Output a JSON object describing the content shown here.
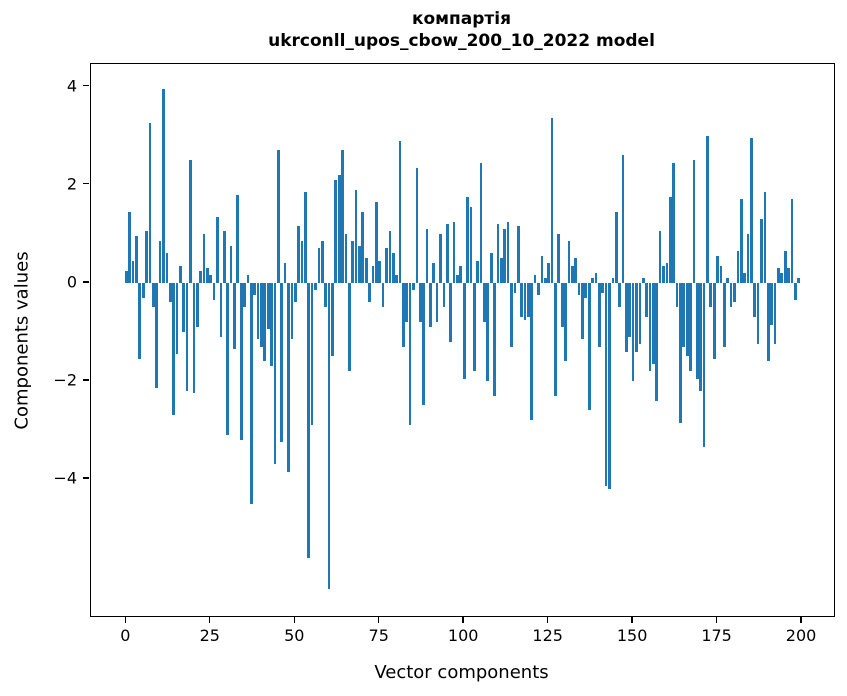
{
  "chart_data": {
    "type": "bar",
    "title_line1": "компартія",
    "title_line2": "ukrconll_upos_cbow_200_10_2022 model",
    "xlabel": "Vector components",
    "ylabel": "Components values",
    "x_ticks": [
      0,
      25,
      50,
      75,
      100,
      125,
      150,
      175,
      200
    ],
    "y_ticks": [
      4,
      2,
      0,
      -2,
      -4
    ],
    "xlim": [
      -10.45,
      209.45
    ],
    "ylim": [
      -6.79,
      4.46
    ],
    "grid": false,
    "legend": null,
    "bar_color": "#1f77b4",
    "n_components": 200,
    "values": [
      0.25,
      1.45,
      0.45,
      0.95,
      -1.55,
      -0.3,
      1.05,
      3.25,
      -0.5,
      -2.15,
      0.85,
      3.95,
      0.6,
      -0.4,
      -2.7,
      -1.45,
      0.35,
      -1.0,
      -2.2,
      2.5,
      -2.25,
      -0.9,
      0.25,
      1.0,
      0.3,
      0.15,
      -0.35,
      1.35,
      -1.1,
      1.05,
      -3.1,
      0.75,
      -1.35,
      1.8,
      -3.2,
      -0.5,
      0.15,
      -4.5,
      -0.25,
      -1.15,
      -1.3,
      -1.6,
      -0.95,
      -1.7,
      -3.7,
      2.7,
      -3.25,
      0.4,
      -3.85,
      -1.15,
      -0.4,
      1.15,
      0.85,
      1.85,
      -5.6,
      -2.9,
      -0.15,
      0.7,
      0.85,
      -0.5,
      -6.25,
      -1.5,
      2.1,
      2.2,
      2.7,
      1.0,
      -1.8,
      0.85,
      1.9,
      0.75,
      1.45,
      0.5,
      -0.4,
      0.35,
      1.65,
      0.45,
      -0.5,
      0.7,
      1.05,
      0.6,
      0.15,
      2.9,
      -1.3,
      -0.8,
      -2.9,
      -0.15,
      2.35,
      -0.8,
      -2.5,
      1.1,
      -0.9,
      0.4,
      -0.8,
      1.0,
      -0.5,
      1.2,
      -1.2,
      1.25,
      0.15,
      0.35,
      -1.95,
      1.75,
      1.55,
      -1.8,
      0.45,
      2.45,
      -0.8,
      -2.0,
      0.6,
      -2.3,
      1.2,
      0.5,
      1.1,
      1.25,
      -1.3,
      -0.2,
      1.15,
      -0.7,
      -0.75,
      -0.7,
      -2.8,
      0.15,
      -0.25,
      0.55,
      0.1,
      0.4,
      3.35,
      -2.3,
      1.0,
      -0.9,
      -1.6,
      0.85,
      0.35,
      0.5,
      -0.25,
      -1.15,
      -0.3,
      -2.6,
      0.1,
      0.2,
      -1.3,
      -0.2,
      -4.15,
      -4.2,
      0.1,
      1.45,
      -0.5,
      2.6,
      -1.4,
      -1.1,
      -2.0,
      -1.4,
      -1.25,
      0.1,
      -0.7,
      -1.8,
      -1.65,
      -2.4,
      1.05,
      0.35,
      0.4,
      1.75,
      2.45,
      -0.5,
      -2.85,
      -1.3,
      -1.5,
      -1.8,
      2.5,
      -1.95,
      -2.2,
      -3.35,
      3.0,
      -0.5,
      -1.55,
      0.55,
      0.35,
      -1.3,
      0.1,
      -0.5,
      -0.4,
      0.65,
      1.7,
      0.2,
      1.0,
      2.95,
      -0.7,
      -1.25,
      1.3,
      1.85,
      -1.6,
      -0.85,
      -1.25,
      0.3,
      0.2,
      0.65,
      0.3,
      1.7,
      -0.35,
      0.1
    ]
  }
}
